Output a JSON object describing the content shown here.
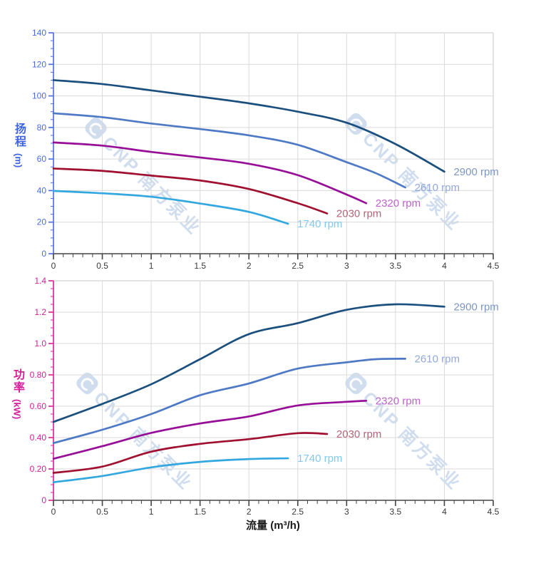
{
  "axes": {
    "flow_title": "流量 (m³/h)",
    "head_cn": "扬程",
    "head_unit": "(m)",
    "power_cn": "功率",
    "power_unit": "(kW)",
    "head_axis_color": "#4a6be0",
    "power_axis_color": "#d42098",
    "x_axis_color": "#444444",
    "x_tick_label_color": "#3a3a3a",
    "grid_color": "#d9d9d9",
    "frame_color": "#e3e3e3"
  },
  "watermark": {
    "text": "CNP 南方泵业"
  },
  "chart_data": [
    {
      "type": "line",
      "name": "head-vs-flow",
      "xlabel": "流量 (m³/h)",
      "ylabel": "扬程 (m)",
      "xlim": [
        0,
        4.5
      ],
      "ylim": [
        0,
        140
      ],
      "grid": true,
      "x_major_ticks": [
        0,
        0.5,
        1,
        1.5,
        2,
        2.5,
        3,
        3.5,
        4,
        4.5
      ],
      "x_tick_labels": [
        "0",
        "0.5",
        "1",
        "1.5",
        "2",
        "2.5",
        "3",
        "3.5",
        "4",
        "4.5"
      ],
      "x_minor_step": 0.1,
      "y_major_ticks": [
        0,
        20,
        40,
        60,
        80,
        100,
        120,
        140
      ],
      "y_tick_labels": [
        "0",
        "20",
        "40",
        "60",
        "80",
        "100",
        "120",
        "140"
      ],
      "y_minor_step": 5,
      "series": [
        {
          "name": "2900 rpm",
          "color": "#1b4f7e",
          "label_color": "#7d97bf",
          "points": [
            [
              0,
              110
            ],
            [
              0.5,
              107.5
            ],
            [
              1,
              103.5
            ],
            [
              1.5,
              99.5
            ],
            [
              2,
              95.3
            ],
            [
              2.5,
              90
            ],
            [
              3,
              83
            ],
            [
              3.5,
              69.5
            ],
            [
              4,
              52
            ]
          ]
        },
        {
          "name": "2610 rpm",
          "color": "#4e79c5",
          "label_color": "#93a8da",
          "points": [
            [
              0,
              89
            ],
            [
              0.5,
              86.5
            ],
            [
              1,
              82.5
            ],
            [
              1.5,
              79
            ],
            [
              2,
              75
            ],
            [
              2.5,
              69
            ],
            [
              3,
              58
            ],
            [
              3.3,
              51
            ],
            [
              3.6,
              42
            ]
          ]
        },
        {
          "name": "2320 rpm",
          "color": "#970e97",
          "label_color": "#bb64c8",
          "points": [
            [
              0,
              70.5
            ],
            [
              0.5,
              68.5
            ],
            [
              1,
              64.5
            ],
            [
              1.5,
              61
            ],
            [
              2,
              57
            ],
            [
              2.5,
              49.8
            ],
            [
              3,
              37.5
            ],
            [
              3.2,
              32
            ]
          ]
        },
        {
          "name": "2030 rpm",
          "color": "#a01031",
          "label_color": "#b56379",
          "points": [
            [
              0,
              54
            ],
            [
              0.5,
              52.5
            ],
            [
              1,
              49.5
            ],
            [
              1.5,
              46.4
            ],
            [
              2,
              41
            ],
            [
              2.5,
              32
            ],
            [
              2.8,
              25.5
            ]
          ]
        },
        {
          "name": "1740 rpm",
          "color": "#33a7df",
          "label_color": "#82c7ef",
          "points": [
            [
              0,
              39.8
            ],
            [
              0.5,
              38.3
            ],
            [
              1,
              36.1
            ],
            [
              1.5,
              31.8
            ],
            [
              2,
              26.5
            ],
            [
              2.4,
              19
            ]
          ]
        }
      ]
    },
    {
      "type": "line",
      "name": "power-vs-flow",
      "xlabel": "流量 (m³/h)",
      "ylabel": "功率 (kW)",
      "xlim": [
        0,
        4.5
      ],
      "ylim": [
        0,
        1.4
      ],
      "grid": true,
      "x_major_ticks": [
        0,
        0.5,
        1,
        1.5,
        2,
        2.5,
        3,
        3.5,
        4,
        4.5
      ],
      "x_tick_labels": [
        "0",
        "0.5",
        "1",
        "1.5",
        "2",
        "2.5",
        "3",
        "3.5",
        "4",
        "4.5"
      ],
      "x_minor_step": 0.1,
      "y_major_ticks": [
        0,
        0.2,
        0.4,
        0.6,
        0.8,
        1.0,
        1.2,
        1.4
      ],
      "y_tick_labels": [
        "0",
        "0.20",
        "0.40",
        "0.60",
        "0.80",
        "1.0",
        "1.2",
        "1.4"
      ],
      "y_minor_step": 0.05,
      "series": [
        {
          "name": "2900 rpm",
          "color": "#1b4f7e",
          "label_color": "#7d97bf",
          "points": [
            [
              0,
              0.5
            ],
            [
              0.5,
              0.615
            ],
            [
              1,
              0.74
            ],
            [
              1.5,
              0.9
            ],
            [
              2,
              1.06
            ],
            [
              2.5,
              1.13
            ],
            [
              3,
              1.215
            ],
            [
              3.5,
              1.25
            ],
            [
              4,
              1.235
            ]
          ]
        },
        {
          "name": "2610 rpm",
          "color": "#4e79c5",
          "label_color": "#93a8da",
          "points": [
            [
              0,
              0.365
            ],
            [
              0.5,
              0.45
            ],
            [
              1,
              0.55
            ],
            [
              1.5,
              0.67
            ],
            [
              2,
              0.745
            ],
            [
              2.5,
              0.84
            ],
            [
              3,
              0.88
            ],
            [
              3.3,
              0.9
            ],
            [
              3.6,
              0.903
            ]
          ]
        },
        {
          "name": "2320 rpm",
          "color": "#970e97",
          "label_color": "#bb64c8",
          "points": [
            [
              0,
              0.265
            ],
            [
              0.5,
              0.345
            ],
            [
              1,
              0.43
            ],
            [
              1.5,
              0.49
            ],
            [
              2,
              0.535
            ],
            [
              2.5,
              0.605
            ],
            [
              3,
              0.628
            ],
            [
              3.2,
              0.635
            ]
          ]
        },
        {
          "name": "2030 rpm",
          "color": "#a01031",
          "label_color": "#b56379",
          "points": [
            [
              0,
              0.175
            ],
            [
              0.5,
              0.215
            ],
            [
              1,
              0.31
            ],
            [
              1.5,
              0.36
            ],
            [
              2,
              0.39
            ],
            [
              2.5,
              0.428
            ],
            [
              2.8,
              0.423
            ]
          ]
        },
        {
          "name": "1740 rpm",
          "color": "#33a7df",
          "label_color": "#82c7ef",
          "points": [
            [
              0,
              0.115
            ],
            [
              0.5,
              0.155
            ],
            [
              1,
              0.21
            ],
            [
              1.5,
              0.245
            ],
            [
              2,
              0.263
            ],
            [
              2.4,
              0.268
            ]
          ]
        }
      ]
    }
  ]
}
